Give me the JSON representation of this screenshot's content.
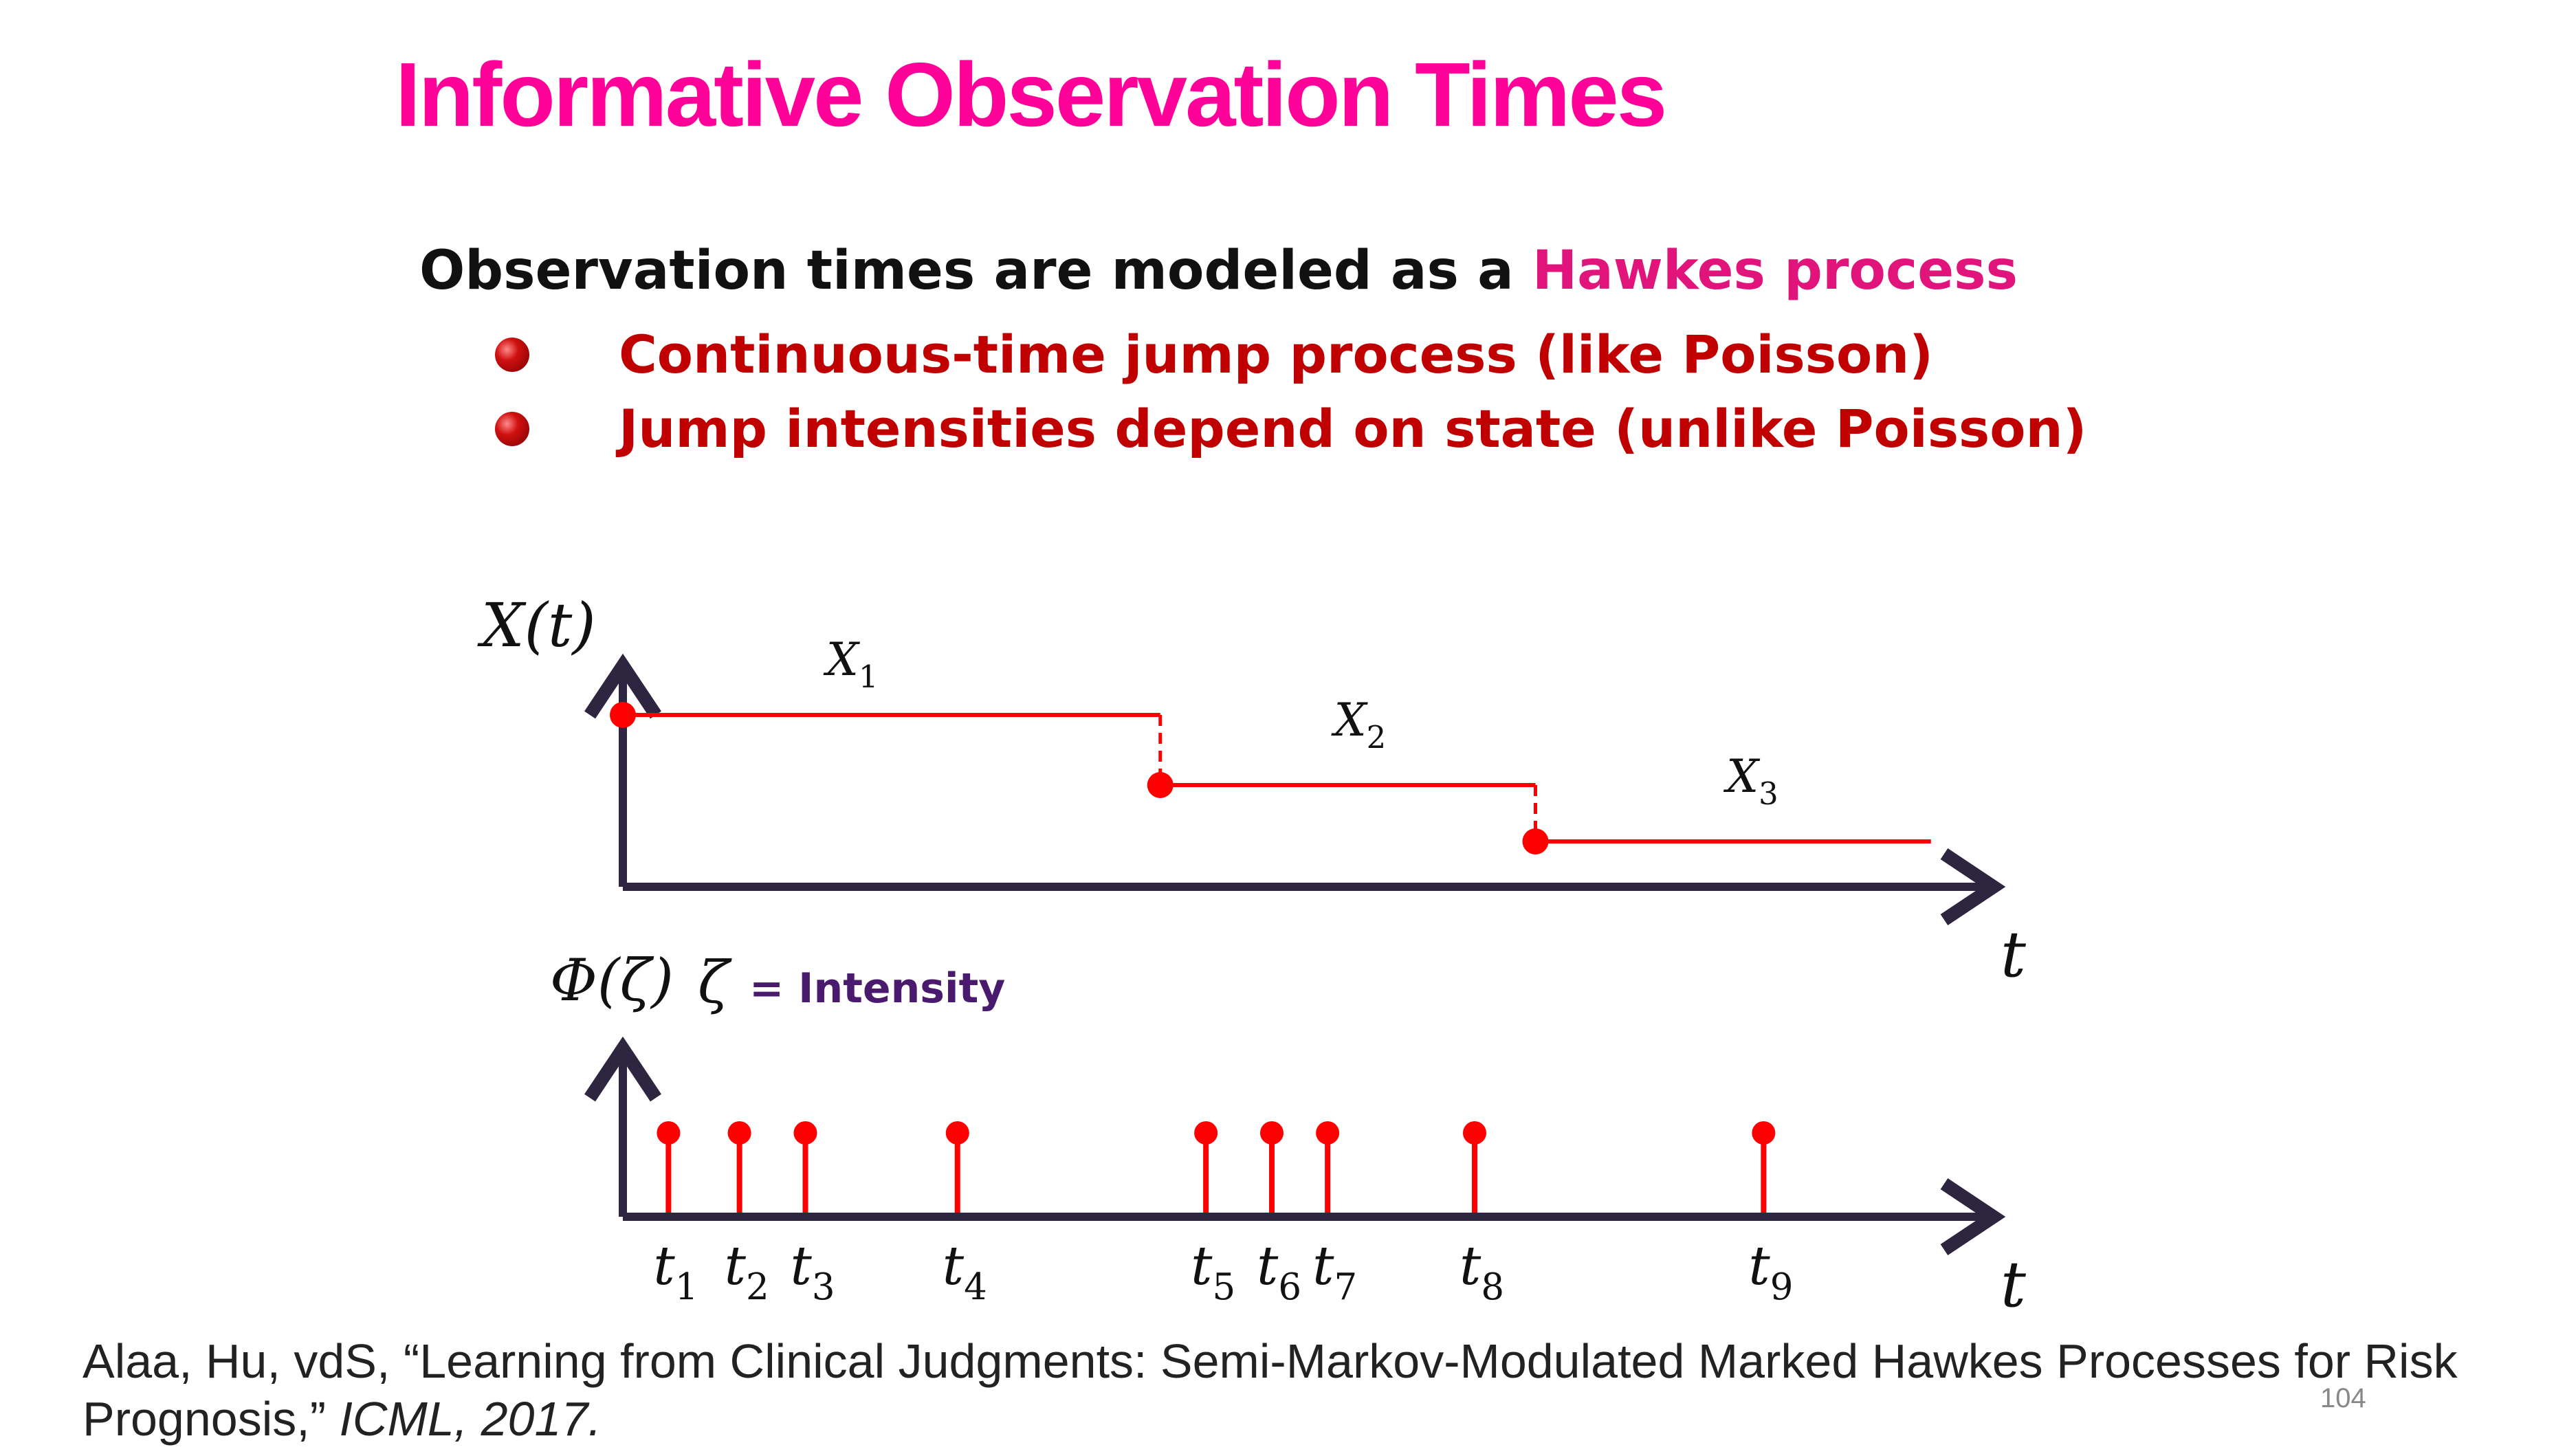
{
  "slide": {
    "title": "Informative Observation Times",
    "subtitle_prefix": "Observation times are modeled as a ",
    "subtitle_highlight": "Hawkes process",
    "bullets": [
      "Continuous-time jump process (like Poisson)",
      "Jump intensities depend on state (unlike Poisson)"
    ],
    "citation_main": "Alaa, Hu, vdS, “Learning from Clinical Judgments: Semi-Markov-Modulated Marked Hawkes Processes for Risk Prognosis,” ",
    "citation_venue": "ICML, 2017.",
    "page_number": "104"
  },
  "diagram": {
    "state_axis_label": "X(t)",
    "intensity_axis_label": "Φ(ζ)",
    "zeta_symbol": "ζ",
    "zeta_legend": "= Intensity",
    "time_label": "t",
    "states": [
      {
        "label": "X",
        "subscript": "1",
        "level": 3,
        "start": 0,
        "end": 5.3
      },
      {
        "label": "X",
        "subscript": "2",
        "level": 2,
        "start": 5.3,
        "end": 9.0
      },
      {
        "label": "X",
        "subscript": "3",
        "level": 1,
        "start": 9.0,
        "end": 12.9
      }
    ],
    "observation_times": [
      {
        "label": "t",
        "subscript": "1",
        "t": 0.45
      },
      {
        "label": "t",
        "subscript": "2",
        "t": 1.15
      },
      {
        "label": "t",
        "subscript": "3",
        "t": 1.8
      },
      {
        "label": "t",
        "subscript": "4",
        "t": 3.3
      },
      {
        "label": "t",
        "subscript": "5",
        "t": 5.75
      },
      {
        "label": "t",
        "subscript": "6",
        "t": 6.4
      },
      {
        "label": "t",
        "subscript": "7",
        "t": 6.95
      },
      {
        "label": "t",
        "subscript": "8",
        "t": 8.4
      },
      {
        "label": "t",
        "subscript": "9",
        "t": 11.25
      }
    ],
    "colors": {
      "axis": "#2e2540",
      "process": "#ff0000",
      "legend_text": "#4a1a6e"
    }
  }
}
